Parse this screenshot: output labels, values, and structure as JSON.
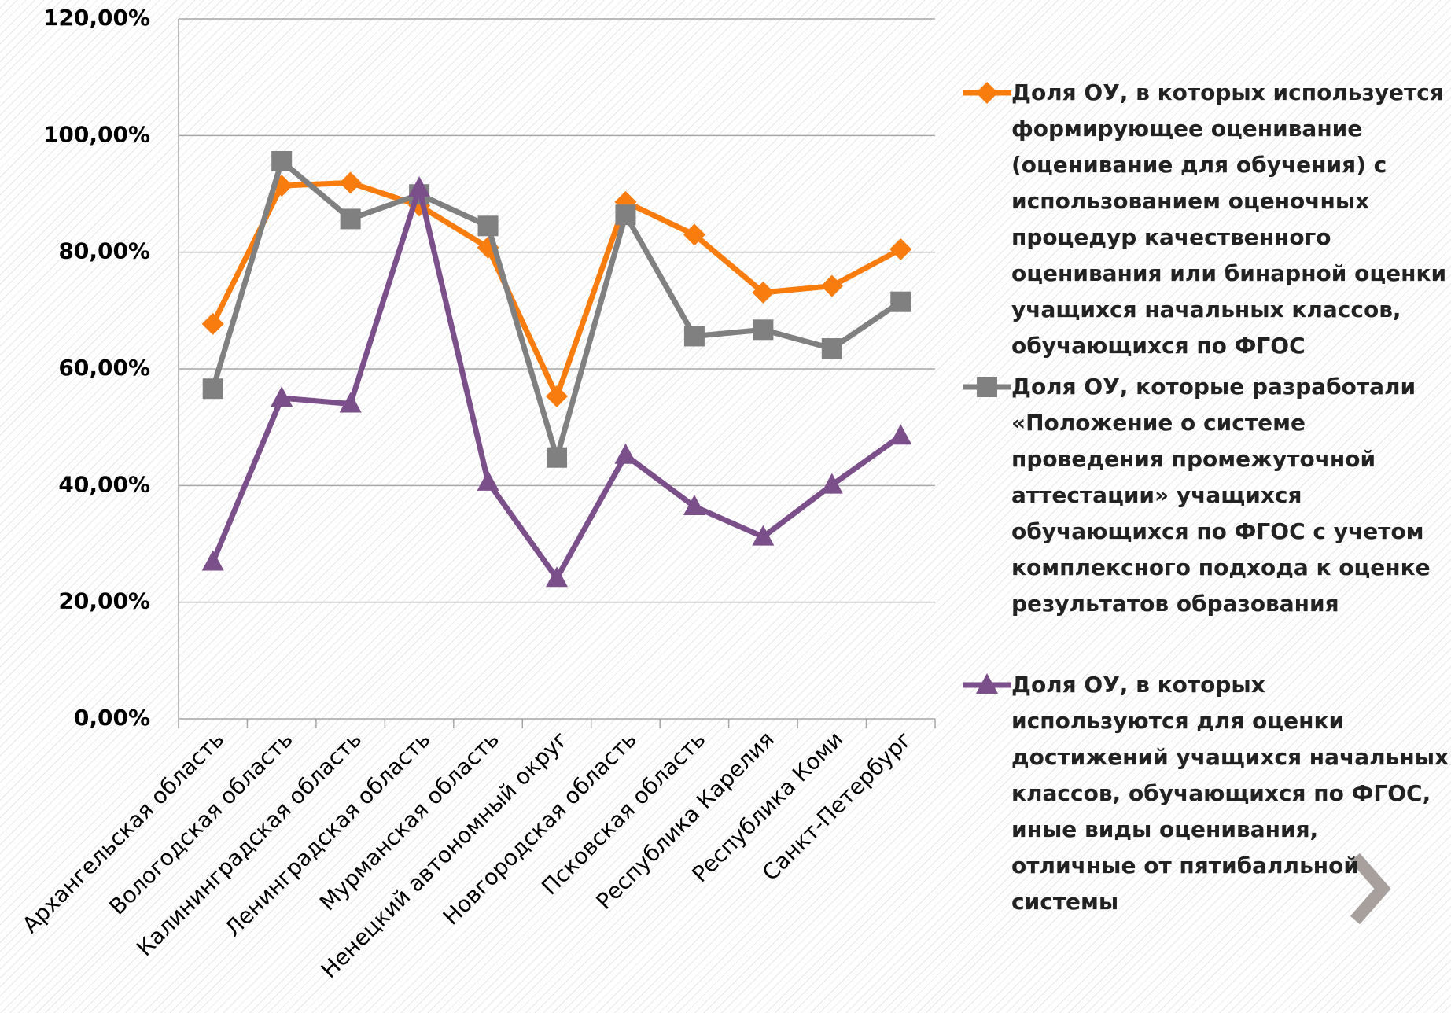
{
  "chart_data": {
    "type": "line",
    "categories": [
      "Архангельская область",
      "Вологодская область",
      "Калининградская область",
      "Ленинградская область",
      "Мурманская область",
      "Ненецкий автономный округ",
      "Новгородская область",
      "Псковская область",
      "Республика Карелия",
      "Республика Коми",
      "Санкт-Петербург"
    ],
    "series": [
      {
        "name": "Доля ОУ, в которых используется формирующее оценивание (оценивание для обучения) с использованием оценочных процедур  качественного оценивания  или бинарной оценки учащихся начальных классов, обучающихся по ФГОС",
        "color": "#f97c0f",
        "marker": "diamond",
        "values": [
          67.7,
          91.4,
          91.9,
          88,
          80.8,
          55.3,
          88.6,
          83,
          73.1,
          74.2,
          80.5
        ]
      },
      {
        "name": "Доля ОУ, которые разработали «Положение о системе проведения промежуточной аттестации» учащихся обучающихся по ФГОС с учетом комплексного подхода к оценке результатов образования",
        "color": "#808080",
        "marker": "square",
        "values": [
          56.6,
          95.6,
          85.7,
          89.9,
          84.5,
          44.8,
          86.4,
          65.6,
          66.7,
          63.5,
          71.5
        ]
      },
      {
        "name": "Доля  ОУ, в которых используются для оценки достижений учащихся начальных  классов, обучающихся по ФГОС, иные виды оценивания, отличные от пятибалльной системы",
        "color": "#7b4f8a",
        "marker": "triangle",
        "values": [
          26.9,
          55,
          54,
          91,
          40.6,
          24.1,
          45.2,
          36.4,
          31.2,
          40.1,
          48.5
        ]
      }
    ],
    "ylim": [
      0,
      120
    ],
    "yticks": [
      {
        "value": 0,
        "label": "0,00%"
      },
      {
        "value": 20,
        "label": "20,00%"
      },
      {
        "value": 40,
        "label": "40,00%"
      },
      {
        "value": 60,
        "label": "60,00%"
      },
      {
        "value": 80,
        "label": "80,00%"
      },
      {
        "value": 100,
        "label": "100,00%"
      },
      {
        "value": 120,
        "label": "120,00%"
      }
    ],
    "grid": true,
    "legend": "right"
  }
}
